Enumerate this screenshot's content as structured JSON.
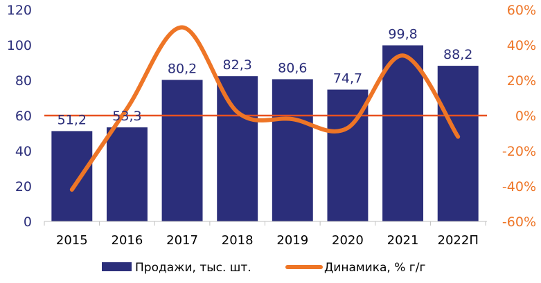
{
  "chart_data": {
    "type": "bar",
    "categories": [
      "2015",
      "2016",
      "2017",
      "2018",
      "2019",
      "2020",
      "2021",
      "2022П"
    ],
    "series": [
      {
        "name": "Продажи, тыс. шт.",
        "type": "bar",
        "axis": "left",
        "values": [
          51.2,
          53.3,
          80.2,
          82.3,
          80.6,
          74.7,
          99.8,
          88.2
        ],
        "labels": [
          "51,2",
          "53,3",
          "80,2",
          "82,3",
          "80,6",
          "74,7",
          "99,8",
          "88,2"
        ],
        "color": "#2b2e7a"
      },
      {
        "name": "Динамика, % г/г",
        "type": "line",
        "axis": "right",
        "smooth": true,
        "values": [
          -42,
          4,
          50,
          2,
          -2,
          -7,
          34,
          -12
        ],
        "color": "#ee7526"
      }
    ],
    "y_left": {
      "min": 0,
      "max": 120,
      "ticks": [
        0,
        20,
        40,
        60,
        80,
        100,
        120
      ],
      "tick_labels": [
        "0",
        "20",
        "40",
        "60",
        "80",
        "100",
        "120"
      ],
      "color": "#2b2e7a"
    },
    "y_right": {
      "min": -60,
      "max": 60,
      "ticks": [
        -60,
        -40,
        -20,
        0,
        20,
        40,
        60
      ],
      "tick_labels": [
        "-60%",
        "-40%",
        "-20%",
        "0%",
        "20%",
        "40%",
        "60%"
      ],
      "color": "#ee7526"
    },
    "zero_line_color": "#e8511f",
    "grid": false,
    "legend": {
      "position": "bottom",
      "items": [
        "Продажи, тыс. шт.",
        "Динамика, % г/г"
      ]
    }
  }
}
